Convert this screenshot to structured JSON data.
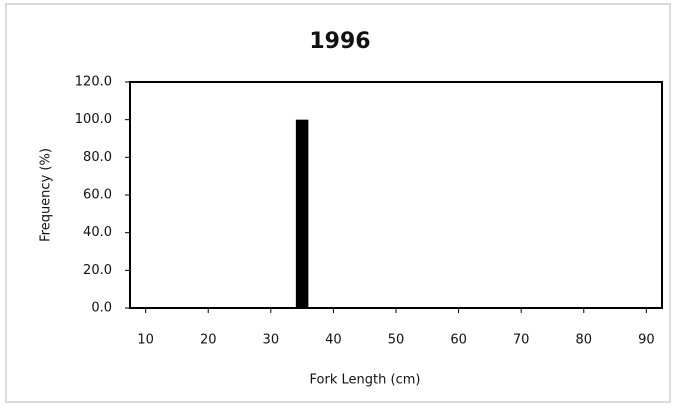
{
  "chart_data": {
    "type": "histogram",
    "title": "1996",
    "x_label": "Fork Length (cm)",
    "y_label": "Frequency (%)",
    "bins": [
      34,
      36
    ],
    "counts": [
      100
    ],
    "color": "#000000",
    "xlim": [
      7.5,
      92.5
    ],
    "xticks": [
      10,
      20,
      30,
      40,
      50,
      60,
      70,
      80,
      90
    ],
    "ylim": [
      0,
      120
    ],
    "yticks": [
      {
        "value": 0,
        "label": "0.0"
      },
      {
        "value": 20,
        "label": "20.0"
      },
      {
        "value": 40,
        "label": "40.0"
      },
      {
        "value": 60,
        "label": "60.0"
      },
      {
        "value": 80,
        "label": "80.0"
      },
      {
        "value": 100,
        "label": "100.0"
      },
      {
        "value": 120,
        "label": "120.0"
      }
    ],
    "grid": false
  }
}
